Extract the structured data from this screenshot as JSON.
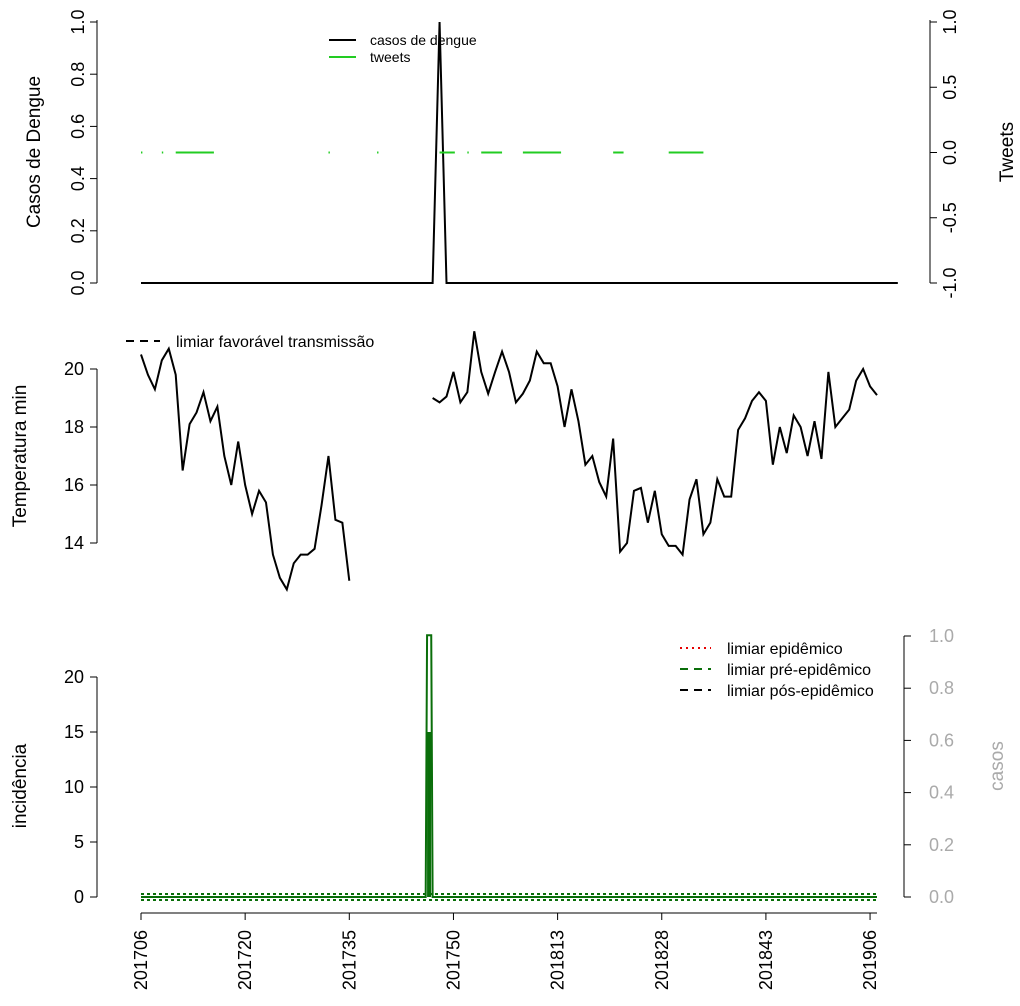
{
  "chart_data": [
    {
      "type": "line",
      "ylabel": "Casos de Dengue",
      "ylabel_right": "Tweets",
      "ylim": [
        0,
        1
      ],
      "yticks": [
        "0.0",
        "0.2",
        "0.4",
        "0.6",
        "0.8",
        "1.0"
      ],
      "ylim_right": [
        -1,
        1
      ],
      "yticks_right": [
        "-1.0",
        "-0.5",
        "0.0",
        "0.5",
        "1.0"
      ],
      "legend_position": "top-center",
      "series": [
        {
          "name": "casos de dengue",
          "color": "#000000",
          "points": [
            [
              0,
              0
            ],
            [
              42,
              0
            ],
            [
              43,
              1
            ],
            [
              44,
              0
            ],
            [
              109,
              0
            ]
          ]
        },
        {
          "name": "tweets",
          "color": "#22cc22",
          "axis": "right",
          "segments": [
            [
              0,
              0.2
            ],
            [
              3,
              3.2
            ],
            [
              5,
              10.5
            ],
            [
              27,
              27.2
            ],
            [
              34,
              34.2
            ],
            [
              43,
              45.2
            ],
            [
              47,
              47.2
            ],
            [
              49,
              52
            ],
            [
              55,
              60.5
            ],
            [
              68,
              69.5
            ],
            [
              76,
              81
            ]
          ],
          "value": 0
        }
      ]
    },
    {
      "type": "line",
      "ylabel": "Temperatura min",
      "yticks": [
        "14",
        "16",
        "18",
        "20"
      ],
      "ylim": [
        12.8,
        21
      ],
      "legend_position": "top-left",
      "legend": [
        {
          "name": "limiar favorável transmissão",
          "style": "dashed",
          "color": "#000000"
        }
      ],
      "series": [
        {
          "name": "temperatura min",
          "color": "#000000",
          "segments": [
            [
              [
                0,
                20.5
              ],
              [
                1,
                19.8
              ],
              [
                2,
                19.3
              ],
              [
                3,
                20.3
              ],
              [
                4,
                20.7
              ],
              [
                5,
                19.8
              ],
              [
                6,
                16.5
              ],
              [
                7,
                18.1
              ],
              [
                8,
                18.5
              ],
              [
                9,
                19.2
              ],
              [
                10,
                18.2
              ],
              [
                11,
                18.7
              ],
              [
                12,
                17
              ],
              [
                13,
                16
              ],
              [
                14,
                17.5
              ],
              [
                15,
                16
              ],
              [
                16,
                15
              ],
              [
                17,
                15.8
              ],
              [
                18,
                15.4
              ],
              [
                19,
                13.6
              ],
              [
                20,
                12.8
              ],
              [
                21,
                12.4
              ],
              [
                22,
                13.3
              ],
              [
                23,
                13.6
              ],
              [
                24,
                13.6
              ],
              [
                25,
                13.8
              ],
              [
                26,
                15.3
              ],
              [
                27,
                17
              ],
              [
                28,
                14.8
              ],
              [
                29,
                14.7
              ],
              [
                30,
                12.7
              ]
            ],
            [
              [
                42,
                19
              ],
              [
                43,
                18.85
              ],
              [
                44,
                19.05
              ],
              [
                45,
                19.9
              ],
              [
                46,
                18.85
              ],
              [
                47,
                19.2
              ],
              [
                48,
                21.3
              ],
              [
                49,
                19.9
              ],
              [
                50,
                19.15
              ],
              [
                51,
                19.9
              ],
              [
                52,
                20.6
              ],
              [
                53,
                19.9
              ],
              [
                54,
                18.85
              ],
              [
                55,
                19.15
              ],
              [
                56,
                19.6
              ],
              [
                57,
                20.6
              ],
              [
                58,
                20.2
              ],
              [
                59,
                20.2
              ],
              [
                60,
                19.4
              ],
              [
                61,
                18
              ],
              [
                62,
                19.3
              ],
              [
                63,
                18.2
              ],
              [
                64,
                16.7
              ],
              [
                65,
                17
              ],
              [
                66,
                16.1
              ],
              [
                67,
                15.6
              ],
              [
                68,
                17.6
              ],
              [
                69,
                13.7
              ],
              [
                70,
                14
              ],
              [
                71,
                15.8
              ],
              [
                72,
                15.9
              ],
              [
                73,
                14.7
              ],
              [
                74,
                15.8
              ],
              [
                75,
                14.3
              ],
              [
                76,
                13.9
              ],
              [
                77,
                13.9
              ],
              [
                78,
                13.6
              ],
              [
                79,
                15.5
              ],
              [
                80,
                16.2
              ],
              [
                81,
                14.3
              ],
              [
                82,
                14.7
              ],
              [
                83,
                16.2
              ],
              [
                84,
                15.6
              ],
              [
                85,
                15.6
              ],
              [
                86,
                17.9
              ],
              [
                87,
                18.3
              ],
              [
                88,
                18.9
              ],
              [
                89,
                19.2
              ],
              [
                90,
                18.9
              ],
              [
                91,
                16.7
              ],
              [
                92,
                18
              ],
              [
                93,
                17.1
              ],
              [
                94,
                18.4
              ],
              [
                95,
                18
              ],
              [
                96,
                17
              ],
              [
                97,
                18.2
              ],
              [
                98,
                16.9
              ],
              [
                99,
                19.9
              ],
              [
                100,
                18
              ],
              [
                101,
                18.3
              ],
              [
                102,
                18.6
              ],
              [
                103,
                19.6
              ],
              [
                104,
                20
              ],
              [
                105,
                19.4
              ],
              [
                106,
                19.1
              ]
            ]
          ]
        }
      ]
    },
    {
      "type": "line",
      "ylabel": "incidência",
      "ylabel_right": "casos",
      "ylim": [
        0,
        24
      ],
      "yticks": [
        "0",
        "5",
        "10",
        "15",
        "20"
      ],
      "ylim_right": [
        0,
        1
      ],
      "yticks_right": [
        "0.0",
        "0.2",
        "0.4",
        "0.6",
        "0.8",
        "1.0"
      ],
      "legend_position": "top-right",
      "legend": [
        {
          "name": "limiar epidêmico",
          "style": "dotted",
          "color": "#e60000"
        },
        {
          "name": "limiar pré-epidêmico",
          "style": "dashed",
          "color": "#0a6e0a"
        },
        {
          "name": "limiar pós-epidêmico",
          "style": "dashed",
          "color": "#000000"
        }
      ],
      "x_ticks": [
        "201706",
        "201720",
        "201735",
        "201750",
        "201813",
        "201828",
        "201843",
        "201906"
      ],
      "series": [
        {
          "name": "incidência",
          "color": "#0a6e0a",
          "points": [
            [
              0,
              0
            ],
            [
              41,
              0
            ],
            [
              41.2,
              23.8
            ],
            [
              41.8,
              23.8
            ],
            [
              42,
              0
            ],
            [
              106,
              0
            ]
          ]
        }
      ]
    }
  ]
}
